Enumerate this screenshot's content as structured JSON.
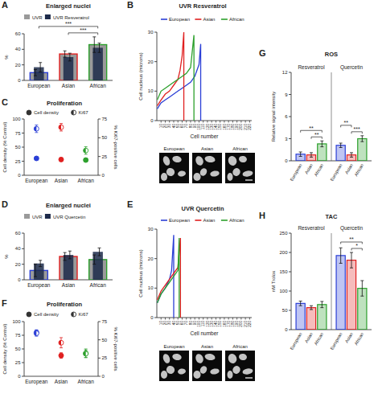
{
  "chart_data": [
    {
      "panel": "A",
      "type": "bar",
      "title": "Enlarged nuclei",
      "categories": [
        "European",
        "Asian",
        "African"
      ],
      "y_label": "%",
      "ylim": [
        0,
        60
      ],
      "yticks": [
        0,
        20,
        40,
        60
      ],
      "colors": [
        "#2b3fd6",
        "#e02020",
        "#2ca02c"
      ],
      "legend": "top-left",
      "series": [
        {
          "name": "UVR",
          "color": "#9a9a9a",
          "values": [
            10,
            34,
            46
          ],
          "errors": [
            4,
            4,
            10
          ]
        },
        {
          "name": "UVR Resveratrol",
          "color": "#1c2a4a",
          "values": [
            17,
            30,
            42
          ],
          "errors": [
            6,
            5,
            6
          ]
        }
      ],
      "annotations": [
        {
          "from": 1,
          "to": 2,
          "label": "***"
        },
        {
          "from": 0,
          "to": 2,
          "label": "***"
        }
      ]
    },
    {
      "panel": "B",
      "type": "line",
      "title": "UVR Resveratrol",
      "x_label": "Cell number",
      "y_label": "Cell nucleus (microns)",
      "xlim": [
        0,
        225
      ],
      "xticks": [
        10,
        20,
        30,
        40,
        50,
        60,
        70,
        80,
        90,
        100,
        110,
        120,
        130,
        140,
        150,
        160,
        170,
        180,
        190,
        200,
        210,
        220
      ],
      "ylim": [
        0,
        30
      ],
      "yticks": [
        0,
        10,
        20,
        30
      ],
      "legend": "top",
      "series": [
        {
          "name": "European",
          "color": "#2b3fd6",
          "x": [
            1,
            10,
            20,
            30,
            40,
            50,
            60,
            70,
            80,
            90,
            100,
            104,
            104
          ],
          "values": [
            4,
            6,
            7,
            8,
            9,
            10,
            11,
            12,
            13,
            15,
            19,
            26,
            0
          ]
        },
        {
          "name": "Asian",
          "color": "#e02020",
          "x": [
            1,
            10,
            20,
            30,
            40,
            50,
            55,
            60,
            64,
            64
          ],
          "values": [
            5,
            7,
            9,
            10,
            12,
            14,
            17,
            22,
            30,
            0
          ]
        },
        {
          "name": "African",
          "color": "#2ca02c",
          "x": [
            1,
            10,
            20,
            30,
            40,
            50,
            60,
            70,
            80,
            88,
            88
          ],
          "values": [
            7,
            10,
            11,
            12,
            13,
            14,
            15,
            16,
            18,
            29,
            0
          ]
        }
      ],
      "image_labels": [
        "European",
        "Asian",
        "African"
      ]
    },
    {
      "panel": "C",
      "type": "scatter",
      "title": "Proliferation",
      "categories": [
        "European",
        "Asian",
        "African"
      ],
      "y_label": "Cell density (% Control)",
      "y2_label": "% Ki67-positive cells",
      "ylim": [
        0,
        100
      ],
      "yticks": [
        0,
        25,
        50,
        75,
        100
      ],
      "y2lim": [
        0,
        75
      ],
      "y2ticks": [
        0,
        25,
        50,
        75
      ],
      "colors": [
        "#2b3fd6",
        "#e02020",
        "#2ca02c"
      ],
      "legend": "top",
      "series": [
        {
          "name": "Cell density",
          "marker": "circle",
          "values": [
            30,
            28,
            27
          ],
          "errors": [
            3,
            3,
            3
          ]
        },
        {
          "name": "Ki67",
          "marker": "half-circle",
          "axis": "y2",
          "values": [
            62,
            64,
            33
          ],
          "errors": [
            5,
            5,
            5
          ]
        }
      ]
    },
    {
      "panel": "D",
      "type": "bar",
      "title": "Enlarged nuclei",
      "categories": [
        "European",
        "Asian",
        "African"
      ],
      "y_label": "%",
      "ylim": [
        0,
        60
      ],
      "yticks": [
        0,
        20,
        40,
        60
      ],
      "colors": [
        "#2b3fd6",
        "#e02020",
        "#2ca02c"
      ],
      "legend": "top-left",
      "series": [
        {
          "name": "UVR",
          "color": "#9a9a9a",
          "values": [
            12,
            30,
            26
          ],
          "errors": [
            8,
            5,
            6
          ]
        },
        {
          "name": "UVR Quercetin",
          "color": "#1c2a4a",
          "values": [
            21,
            32,
            36
          ],
          "errors": [
            4,
            5,
            5
          ]
        }
      ]
    },
    {
      "panel": "E",
      "type": "line",
      "title": "UVR Quercetin",
      "x_label": "Cell number",
      "y_label": "Cell nucleus (microns)",
      "xlim": [
        0,
        225
      ],
      "xticks": [
        10,
        20,
        30,
        40,
        50,
        60,
        70,
        80,
        90,
        100,
        110,
        120,
        130,
        140,
        150,
        160,
        170,
        180,
        190,
        200,
        210,
        220
      ],
      "ylim": [
        0,
        30
      ],
      "yticks": [
        0,
        10,
        20,
        30
      ],
      "legend": "top",
      "series": [
        {
          "name": "European",
          "color": "#2b3fd6",
          "x": [
            1,
            10,
            20,
            30,
            35,
            40,
            40
          ],
          "values": [
            5,
            8,
            10,
            13,
            16,
            28,
            0
          ]
        },
        {
          "name": "Asian",
          "color": "#e02020",
          "x": [
            1,
            10,
            20,
            30,
            40,
            50,
            56,
            56
          ],
          "values": [
            6,
            9,
            11,
            13,
            15,
            17,
            27,
            0
          ]
        },
        {
          "name": "African",
          "color": "#2ca02c",
          "x": [
            1,
            10,
            20,
            30,
            40,
            50,
            53,
            53
          ],
          "values": [
            5,
            8,
            10,
            12,
            14,
            16,
            27,
            0
          ]
        }
      ],
      "image_labels": [
        "European",
        "Asian",
        "African"
      ]
    },
    {
      "panel": "F",
      "type": "scatter",
      "title": "Proliferation",
      "categories": [
        "European",
        "Asian",
        "African"
      ],
      "y_label": "Cell density (% Control)",
      "y2_label": "% Ki67-positive cells",
      "ylim": [
        0,
        100
      ],
      "yticks": [
        0,
        25,
        50,
        75,
        100
      ],
      "y2lim": [
        0,
        75
      ],
      "y2ticks": [
        0,
        25,
        50,
        75
      ],
      "colors": [
        "#2b3fd6",
        "#e02020",
        "#2ca02c"
      ],
      "legend": "top",
      "series": [
        {
          "name": "Cell density",
          "marker": "circle",
          "values": [
            80,
            38,
            42
          ],
          "errors": [
            5,
            5,
            8
          ]
        },
        {
          "name": "Ki67",
          "marker": "half-circle",
          "axis": "y2",
          "values": [
            59,
            46,
            31
          ],
          "errors": [
            4,
            7,
            5
          ]
        }
      ]
    },
    {
      "panel": "G",
      "type": "bar",
      "title": "ROS",
      "y_label": "Relative signal intensity",
      "categories": [
        "Resveratrol",
        "Quercetin"
      ],
      "ylim": [
        0,
        12
      ],
      "yticks": [
        0,
        3,
        6,
        9,
        12
      ],
      "series": [
        {
          "name": "European",
          "color": "#2b3fd6",
          "values": [
            0.9,
            2.1
          ],
          "errors": [
            0.3,
            0.3
          ]
        },
        {
          "name": "Asian",
          "color": "#e02020",
          "values": [
            0.8,
            0.8
          ],
          "errors": [
            0.3,
            0.3
          ]
        },
        {
          "name": "African",
          "color": "#2ca02c",
          "values": [
            2.3,
            3.0
          ],
          "errors": [
            0.4,
            0.4
          ]
        }
      ],
      "annotations": [
        {
          "group": 0,
          "from": 1,
          "to": 2,
          "label": "**"
        },
        {
          "group": 0,
          "from": 0,
          "to": 2,
          "label": "**"
        },
        {
          "group": 1,
          "from": 1,
          "to": 2,
          "label": "***"
        },
        {
          "group": 1,
          "from": 0,
          "to": 1,
          "label": "**"
        }
      ]
    },
    {
      "panel": "H",
      "type": "bar",
      "title": "TAC",
      "y_label": "nM Trolox",
      "categories": [
        "Resveratrol",
        "Quercetin"
      ],
      "ylim": [
        0,
        250
      ],
      "yticks": [
        0,
        50,
        100,
        150,
        200,
        250
      ],
      "series": [
        {
          "name": "European",
          "color": "#2b3fd6",
          "values": [
            68,
            192
          ],
          "errors": [
            6,
            20
          ]
        },
        {
          "name": "Asian",
          "color": "#e02020",
          "values": [
            57,
            180
          ],
          "errors": [
            5,
            20
          ]
        },
        {
          "name": "African",
          "color": "#2ca02c",
          "values": [
            65,
            107
          ],
          "errors": [
            8,
            20
          ]
        }
      ],
      "annotations": [
        {
          "group": 1,
          "from": 1,
          "to": 2,
          "label": "*"
        },
        {
          "group": 1,
          "from": 0,
          "to": 2,
          "label": "**"
        }
      ]
    }
  ]
}
